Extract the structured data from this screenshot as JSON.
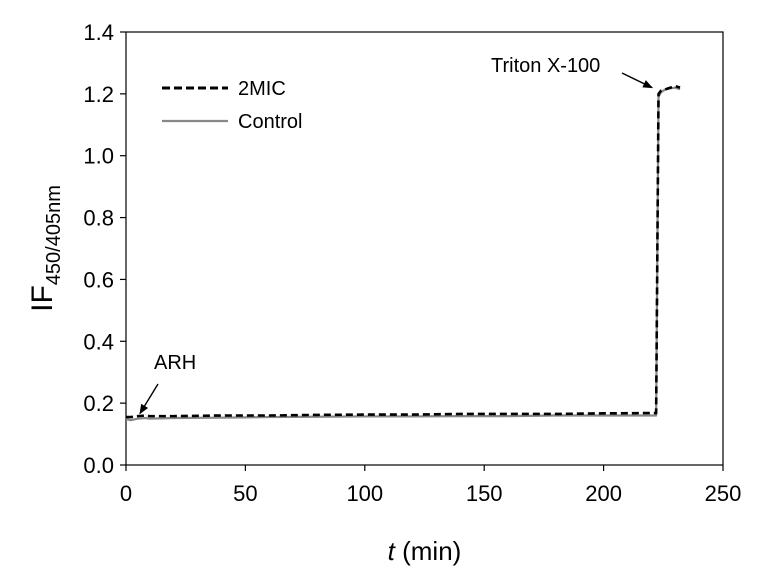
{
  "chart_data": {
    "type": "line",
    "xlabel": {
      "italic": "t",
      "rest": " (min)"
    },
    "ylabel": {
      "main": "IF",
      "sub": "450/405nm"
    },
    "xlim": [
      0,
      250
    ],
    "ylim": [
      0,
      1.4
    ],
    "xticks": [
      0,
      50,
      100,
      150,
      200,
      250
    ],
    "yticks": [
      0.0,
      0.2,
      0.4,
      0.6,
      0.8,
      1.0,
      1.2,
      1.4
    ],
    "ytick_labels": [
      "0.0",
      "0.2",
      "0.4",
      "0.6",
      "0.8",
      "1.0",
      "1.2",
      "1.4"
    ],
    "xtick_labels": [
      "0",
      "50",
      "100",
      "150",
      "200",
      "250"
    ],
    "grid": false,
    "legend_position": "top-left",
    "series": [
      {
        "name": "2MIC",
        "style": "dashed",
        "color": "#000000",
        "x": [
          0,
          2,
          5,
          8,
          10,
          20,
          40,
          60,
          80,
          100,
          120,
          140,
          160,
          180,
          200,
          220,
          222,
          223,
          224,
          226,
          228,
          230,
          232
        ],
        "y": [
          0.155,
          0.155,
          0.158,
          0.16,
          0.158,
          0.158,
          0.16,
          0.16,
          0.162,
          0.163,
          0.163,
          0.165,
          0.165,
          0.165,
          0.167,
          0.168,
          0.168,
          1.2,
          1.21,
          1.215,
          1.22,
          1.225,
          1.22
        ]
      },
      {
        "name": "Control",
        "style": "solid",
        "color": "#888888",
        "x": [
          0,
          2,
          5,
          8,
          10,
          20,
          40,
          60,
          80,
          100,
          120,
          140,
          160,
          180,
          200,
          220,
          222,
          223,
          224,
          226,
          228,
          230,
          232
        ],
        "y": [
          0.148,
          0.145,
          0.15,
          0.152,
          0.15,
          0.152,
          0.153,
          0.155,
          0.156,
          0.157,
          0.157,
          0.158,
          0.158,
          0.16,
          0.16,
          0.16,
          0.16,
          1.19,
          1.205,
          1.215,
          1.218,
          1.22,
          1.215
        ]
      }
    ],
    "annotations": [
      {
        "text": "ARH",
        "arrow_to": [
          5,
          0.16
        ]
      },
      {
        "text": "Triton X-100",
        "arrow_to": [
          222,
          1.22
        ]
      }
    ]
  }
}
